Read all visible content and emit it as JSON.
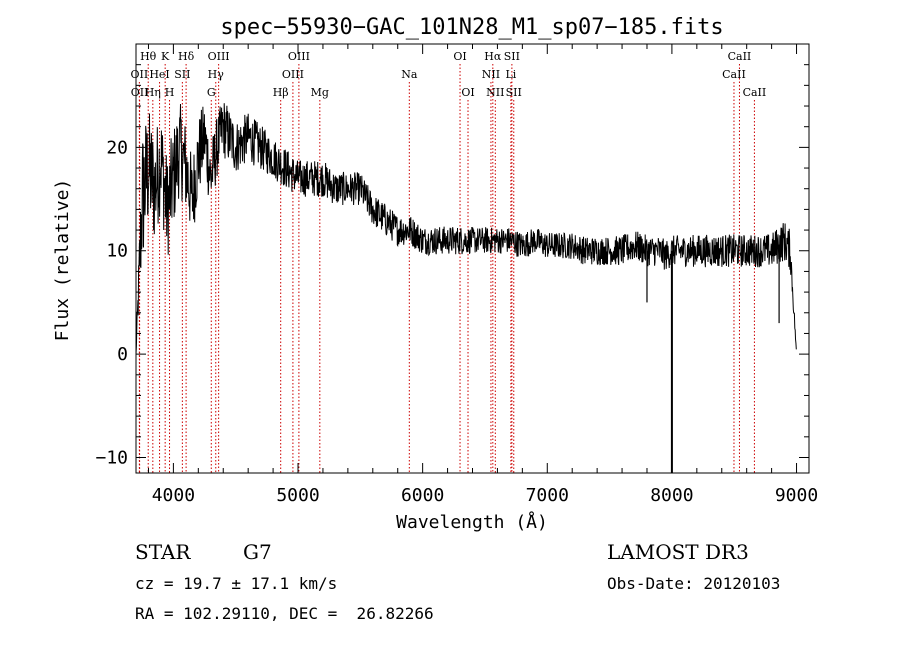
{
  "chart_data": {
    "type": "line",
    "title": "spec−55930−GAC_101N28_M1_sp07−185.fits",
    "xlabel": "Wavelength (Å)",
    "ylabel": "Flux (relative)",
    "xlim": [
      3700,
      9100
    ],
    "ylim": [
      -11.5,
      30
    ],
    "xticks": [
      4000,
      5000,
      6000,
      7000,
      8000,
      9000
    ],
    "xtick_labels": [
      "4000",
      "5000",
      "6000",
      "7000",
      "8000",
      "9000"
    ],
    "yticks": [
      -10,
      0,
      10,
      20
    ],
    "ytick_labels": [
      "−10",
      "0",
      "10",
      "20"
    ],
    "series": [
      {
        "name": "spectrum",
        "color": "#000000",
        "x": [
          3700,
          3750,
          3800,
          3850,
          3900,
          3950,
          4000,
          4050,
          4100,
          4150,
          4200,
          4250,
          4300,
          4350,
          4400,
          4450,
          4500,
          4600,
          4700,
          4800,
          4900,
          5000,
          5100,
          5200,
          5300,
          5400,
          5500,
          5600,
          5700,
          5800,
          5900,
          6000,
          6100,
          6200,
          6300,
          6400,
          6500,
          6600,
          6700,
          6800,
          6900,
          7000,
          7100,
          7200,
          7300,
          7400,
          7500,
          7600,
          7700,
          7800,
          7900,
          7950,
          8000,
          8050,
          8100,
          8200,
          8300,
          8400,
          8500,
          8600,
          8700,
          8800,
          8900,
          8950,
          9000
        ],
        "y": [
          0,
          15,
          18,
          16,
          19,
          14,
          17,
          20,
          18,
          15,
          19,
          21,
          17,
          20,
          22,
          21,
          20,
          21,
          20,
          19,
          18,
          17,
          17,
          17,
          16,
          16,
          16,
          14,
          13,
          12,
          12,
          11,
          11,
          11,
          11,
          11,
          11,
          11,
          11,
          10.5,
          11,
          10.5,
          10.5,
          10.5,
          10,
          10,
          10,
          10,
          10.5,
          10,
          10,
          9.5,
          10,
          10,
          10,
          10,
          10,
          10,
          10,
          10,
          10,
          10,
          11,
          10,
          0
        ],
        "noise_level": [
          0,
          7,
          6,
          5.5,
          5,
          5,
          5,
          4.5,
          4.5,
          4,
          4,
          3.5,
          3.5,
          3,
          3,
          2.8,
          2.6,
          2.4,
          2.2,
          2,
          2,
          1.8,
          1.8,
          1.8,
          1.7,
          1.6,
          1.6,
          1.6,
          1.6,
          1.5,
          1.5,
          1.4,
          1.4,
          1.4,
          1.4,
          1.3,
          1.3,
          1.3,
          1.3,
          1.3,
          1.3,
          1.3,
          1.3,
          1.3,
          1.4,
          1.4,
          1.4,
          1.5,
          1.5,
          1.5,
          1.5,
          1.5,
          1.5,
          1.5,
          1.5,
          1.6,
          1.6,
          1.6,
          1.6,
          1.6,
          1.6,
          1.7,
          2,
          2,
          0
        ]
      }
    ],
    "features": [
      {
        "label": "bad-pixel spike",
        "x": 8000,
        "y": -11.5
      },
      {
        "label": "dip",
        "x": 7800,
        "y": 5
      },
      {
        "label": "dip",
        "x": 8860,
        "y": 3
      }
    ],
    "line_marks": {
      "color": "#cc0000",
      "lines": [
        {
          "label": "Hθ",
          "x": 3798,
          "row": 1
        },
        {
          "label": "OII",
          "x": 3727,
          "row": 2
        },
        {
          "label": "OII",
          "x": 3729,
          "row": 3
        },
        {
          "label": "HeI",
          "x": 3889,
          "row": 2
        },
        {
          "label": "Hη",
          "x": 3835,
          "row": 3
        },
        {
          "label": "K",
          "x": 3934,
          "row": 1
        },
        {
          "label": "H",
          "x": 3969,
          "row": 3
        },
        {
          "label": "Hδ",
          "x": 4102,
          "row": 1
        },
        {
          "label": "SII",
          "x": 4072,
          "row": 2
        },
        {
          "label": "OIII",
          "x": 4363,
          "row": 1
        },
        {
          "label": "Hγ",
          "x": 4340,
          "row": 2
        },
        {
          "label": "G",
          "x": 4304,
          "row": 3
        },
        {
          "label": "Hβ",
          "x": 4861,
          "row": 3
        },
        {
          "label": "OIII",
          "x": 5007,
          "row": 1
        },
        {
          "label": "OIII",
          "x": 4959,
          "row": 2
        },
        {
          "label": "Mg",
          "x": 5175,
          "row": 3
        },
        {
          "label": "Na",
          "x": 5893,
          "row": 2
        },
        {
          "label": "OI",
          "x": 6300,
          "row": 1
        },
        {
          "label": "OI",
          "x": 6364,
          "row": 3
        },
        {
          "label": "Hα",
          "x": 6563,
          "row": 1
        },
        {
          "label": "NII",
          "x": 6548,
          "row": 2
        },
        {
          "label": "NII",
          "x": 6583,
          "row": 3
        },
        {
          "label": "SII",
          "x": 6716,
          "row": 1
        },
        {
          "label": "Li",
          "x": 6708,
          "row": 2
        },
        {
          "label": "SII",
          "x": 6731,
          "row": 3
        },
        {
          "label": "CaII",
          "x": 8542,
          "row": 1
        },
        {
          "label": "CaII",
          "x": 8498,
          "row": 2
        },
        {
          "label": "CaII",
          "x": 8662,
          "row": 3
        }
      ]
    }
  },
  "info": {
    "class_label": "STAR",
    "subclass": "G7",
    "survey": "LAMOST DR3",
    "cz": "cz = 19.7 ± 17.1 km/s",
    "obs_date": "Obs-Date: 20120103",
    "coords": "RA = 102.29110, DEC =  26.82266"
  }
}
